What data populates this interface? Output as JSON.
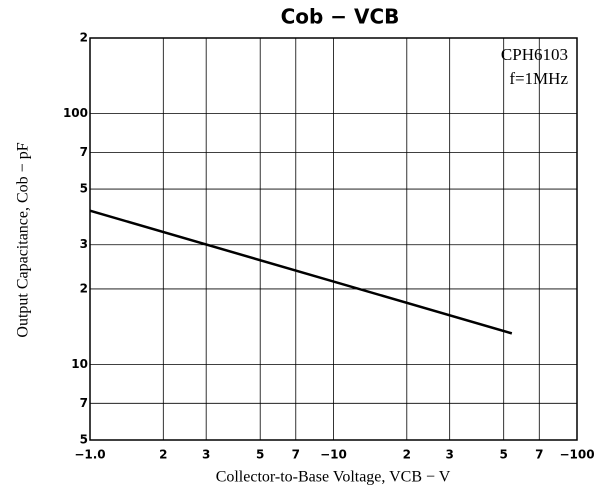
{
  "chart_data": {
    "type": "line",
    "title": "Cob − VCB",
    "x_label": "Collector-to-Base Voltage, VCB − V",
    "y_label": "Output Capacitance, Cob − pF",
    "annotations": [
      "CPH6103",
      "f=1MHz"
    ],
    "x_log": true,
    "y_log": true,
    "grid": true,
    "xlim": [
      1,
      100
    ],
    "ylim": [
      5,
      200
    ],
    "xticks": [
      {
        "value": 1,
        "label": "−1.0"
      },
      2,
      3,
      5,
      7,
      {
        "value": 10,
        "label": "−10"
      },
      {
        "value": 20,
        "label": "2"
      },
      {
        "value": 30,
        "label": "3"
      },
      {
        "value": 50,
        "label": "5"
      },
      {
        "value": 70,
        "label": "7"
      },
      {
        "value": 100,
        "label": "−100"
      }
    ],
    "yticks": [
      5,
      7,
      10,
      {
        "value": 20,
        "label": "2"
      },
      {
        "value": 30,
        "label": "3"
      },
      {
        "value": 50,
        "label": "5"
      },
      {
        "value": 70,
        "label": "7"
      },
      100,
      {
        "value": 200,
        "label": "2"
      }
    ],
    "series": [
      {
        "color": "#000000",
        "x": [
          1,
          54
        ],
        "values": [
          41,
          13.3
        ]
      }
    ]
  }
}
